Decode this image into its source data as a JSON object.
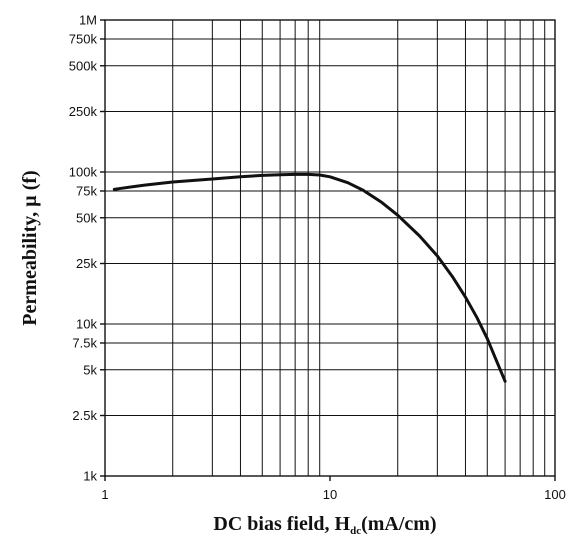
{
  "chart_data": {
    "type": "line",
    "title": "",
    "xlabel": {
      "main": "DC bias field, H",
      "sub": "dc",
      "rest": "(mA/cm)"
    },
    "ylabel": "Permeability, µ (f)",
    "x_scale": "log",
    "y_scale": "log",
    "xlim": [
      1,
      100
    ],
    "ylim": [
      1000,
      1000000
    ],
    "x_ticks": [
      {
        "value": 1,
        "label": "1"
      },
      {
        "value": 10,
        "label": "10"
      },
      {
        "value": 100,
        "label": "100"
      }
    ],
    "y_ticks": [
      {
        "value": 1000,
        "label": "1k"
      },
      {
        "value": 2500,
        "label": "2.5k"
      },
      {
        "value": 5000,
        "label": "5k"
      },
      {
        "value": 7500,
        "label": "7.5k"
      },
      {
        "value": 10000,
        "label": "10k"
      },
      {
        "value": 25000,
        "label": "25k"
      },
      {
        "value": 50000,
        "label": "50k"
      },
      {
        "value": 75000,
        "label": "75k"
      },
      {
        "value": 100000,
        "label": "100k"
      },
      {
        "value": 250000,
        "label": "250k"
      },
      {
        "value": 500000,
        "label": "500k"
      },
      {
        "value": 750000,
        "label": "750k"
      },
      {
        "value": 1000000,
        "label": "1M"
      }
    ],
    "grid": true,
    "series": [
      {
        "color": "#111111",
        "points": [
          [
            1.1,
            77000
          ],
          [
            1.5,
            82000
          ],
          [
            2,
            86000
          ],
          [
            3,
            90000
          ],
          [
            4,
            93000
          ],
          [
            5,
            95000
          ],
          [
            6,
            96000
          ],
          [
            7,
            96500
          ],
          [
            8,
            96500
          ],
          [
            9,
            95500
          ],
          [
            10,
            93000
          ],
          [
            12,
            85000
          ],
          [
            14,
            76000
          ],
          [
            17,
            63000
          ],
          [
            20,
            52000
          ],
          [
            25,
            38000
          ],
          [
            30,
            28000
          ],
          [
            35,
            20500
          ],
          [
            40,
            15000
          ],
          [
            45,
            11000
          ],
          [
            50,
            8000
          ],
          [
            55,
            5700
          ],
          [
            60,
            4200
          ]
        ]
      }
    ]
  }
}
